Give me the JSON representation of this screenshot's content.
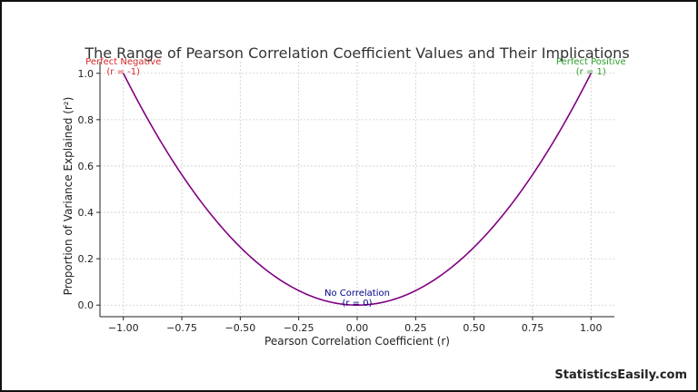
{
  "chart_data": {
    "type": "line",
    "title": "The Range of Pearson Correlation Coefficient Values and Their Implications",
    "xlabel": "Pearson Correlation Coefficient (r)",
    "ylabel": "Proportion of Variance Explained (r²)",
    "xlim": [
      -1.1,
      1.1
    ],
    "ylim": [
      -0.05,
      1.05
    ],
    "xticks": [
      -1.0,
      -0.75,
      -0.5,
      -0.25,
      0.0,
      0.25,
      0.5,
      0.75,
      1.0
    ],
    "xtick_labels": [
      "−1.00",
      "−0.75",
      "−0.50",
      "−0.25",
      "0.00",
      "0.25",
      "0.50",
      "0.75",
      "1.00"
    ],
    "yticks": [
      0.0,
      0.2,
      0.4,
      0.6,
      0.8,
      1.0
    ],
    "ytick_labels": [
      "0.0",
      "0.2",
      "0.4",
      "0.6",
      "0.8",
      "1.0"
    ],
    "grid": true,
    "series": [
      {
        "name": "r²",
        "function": "y = x^2",
        "x_range": [
          -1.0,
          1.0
        ],
        "color": "#800080"
      }
    ],
    "annotations": [
      {
        "name": "perfect-negative",
        "lines": [
          "Perfect Negative",
          "(r = -1)"
        ],
        "x": -1.0,
        "y": 1.0,
        "color": "#d62728"
      },
      {
        "name": "no-correlation",
        "lines": [
          "No Correlation",
          "(r = 0)"
        ],
        "x": 0.0,
        "y": 0.0,
        "color": "#00008b"
      },
      {
        "name": "perfect-positive",
        "lines": [
          "Perfect Positive",
          "(r = 1)"
        ],
        "x": 1.0,
        "y": 1.0,
        "color": "#2ca02c"
      }
    ]
  },
  "watermark": "StatisticsEasily.com"
}
